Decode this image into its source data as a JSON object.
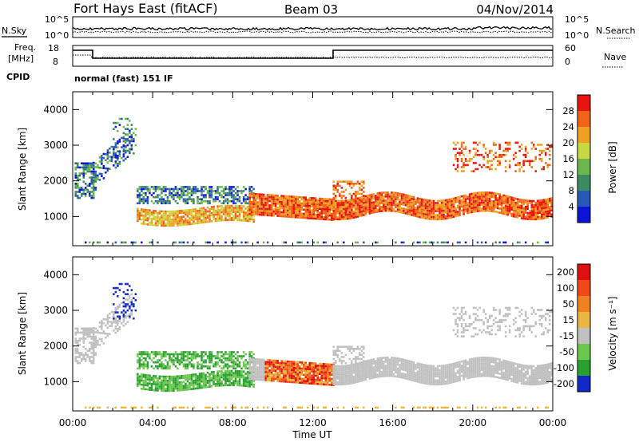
{
  "header": {
    "station": "Fort Hays East (fitACF)",
    "beam": "Beam 03",
    "date": "04/Nov/2014"
  },
  "panels": {
    "nsky_label": "N.Sky",
    "nsearch_label": "N.Search",
    "noise_ticks_left": [
      "10^5",
      "10^0"
    ],
    "noise_ticks_right": [
      "10^5",
      "10^0"
    ],
    "freq_label": "Freq.",
    "freq_unit": "[MHz]",
    "freq_ticks": [
      "18",
      "8"
    ],
    "nave_label": "Nave",
    "nave_ticks": [
      "60",
      "0"
    ],
    "cpid_label": "CPID",
    "cpid_value": "normal (fast) 151 IF"
  },
  "colors": {
    "power_scale": [
      "#0c14d8",
      "#2858b8",
      "#3c8a60",
      "#6ab84c",
      "#c8d840",
      "#f0a020",
      "#f06418",
      "#e81410"
    ],
    "velocity_scale": [
      "#1428c8",
      "#28a030",
      "#6cc84c",
      "#c0c0c0",
      "#e8b840",
      "#f08020",
      "#f04818",
      "#e01010"
    ]
  },
  "chart_data": [
    {
      "type": "heatmap",
      "name": "power",
      "xlabel": "",
      "ylabel": "Slant Range [km]",
      "yticks": [
        "1000",
        "2000",
        "3000",
        "4000"
      ],
      "colorbar_label": "Power [dB]",
      "colorbar_ticks": [
        "4",
        "8",
        "12",
        "16",
        "20",
        "24",
        "28"
      ],
      "xlim": [
        0,
        24
      ],
      "ylim": [
        180,
        4500
      ]
    },
    {
      "type": "heatmap",
      "name": "velocity",
      "xlabel": "Time UT",
      "ylabel": "Slant Range [km]",
      "xticks": [
        "00:00",
        "04:00",
        "08:00",
        "12:00",
        "16:00",
        "20:00",
        "00:00"
      ],
      "yticks": [
        "1000",
        "2000",
        "3000",
        "4000"
      ],
      "colorbar_label": "Velocity [m s⁻¹]",
      "colorbar_ticks": [
        "200",
        "100",
        "50",
        "15",
        "-15",
        "-50",
        "-100",
        "-200"
      ],
      "xlim": [
        0,
        24
      ],
      "ylim": [
        180,
        4500
      ]
    }
  ]
}
